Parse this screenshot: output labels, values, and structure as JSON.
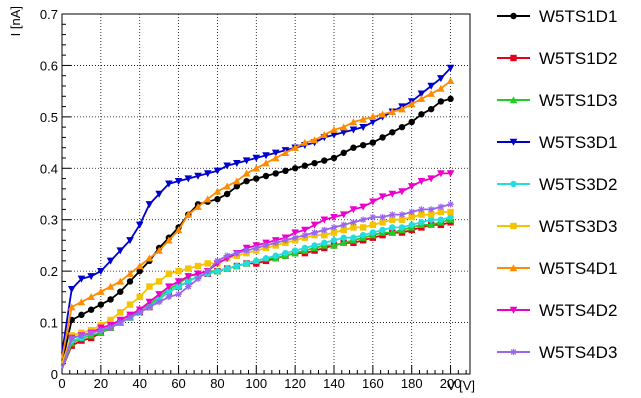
{
  "chart_data": {
    "type": "line",
    "xlabel": "V [V]",
    "ylabel": "I [nA]",
    "xlim": [
      0,
      210
    ],
    "ylim": [
      0,
      0.7
    ],
    "x_ticks": [
      0,
      20,
      40,
      60,
      80,
      100,
      120,
      140,
      160,
      180,
      200
    ],
    "y_ticks": [
      0,
      0.1,
      0.2,
      0.3,
      0.4,
      0.5,
      0.6,
      0.7
    ],
    "grid": true,
    "legend_position": "right",
    "x": [
      0,
      5,
      10,
      15,
      20,
      25,
      30,
      35,
      40,
      45,
      50,
      55,
      60,
      65,
      70,
      75,
      80,
      85,
      90,
      95,
      100,
      105,
      110,
      115,
      120,
      125,
      130,
      135,
      140,
      145,
      150,
      155,
      160,
      165,
      170,
      175,
      180,
      185,
      190,
      195,
      200
    ],
    "series": [
      {
        "name": "W5TS1D1",
        "color": "#000000",
        "marker": "circle",
        "values": [
          0.02,
          0.105,
          0.115,
          0.125,
          0.135,
          0.145,
          0.16,
          0.18,
          0.2,
          0.22,
          0.245,
          0.265,
          0.285,
          0.31,
          0.33,
          0.335,
          0.34,
          0.35,
          0.365,
          0.375,
          0.38,
          0.385,
          0.39,
          0.395,
          0.4,
          0.405,
          0.41,
          0.415,
          0.42,
          0.43,
          0.44,
          0.445,
          0.45,
          0.46,
          0.47,
          0.48,
          0.49,
          0.505,
          0.515,
          0.53,
          0.535
        ]
      },
      {
        "name": "W5TS1D2",
        "color": "#e6001a",
        "marker": "square",
        "values": [
          0.01,
          0.055,
          0.065,
          0.07,
          0.08,
          0.09,
          0.1,
          0.11,
          0.12,
          0.13,
          0.145,
          0.16,
          0.17,
          0.18,
          0.19,
          0.195,
          0.2,
          0.205,
          0.21,
          0.215,
          0.215,
          0.22,
          0.225,
          0.23,
          0.235,
          0.235,
          0.24,
          0.245,
          0.25,
          0.255,
          0.255,
          0.26,
          0.265,
          0.27,
          0.275,
          0.275,
          0.28,
          0.285,
          0.29,
          0.29,
          0.295
        ]
      },
      {
        "name": "W5TS1D3",
        "color": "#22cc22",
        "marker": "triangle-up",
        "values": [
          0.01,
          0.06,
          0.07,
          0.075,
          0.08,
          0.09,
          0.1,
          0.11,
          0.125,
          0.135,
          0.15,
          0.165,
          0.175,
          0.19,
          0.195,
          0.2,
          0.2,
          0.205,
          0.21,
          0.215,
          0.22,
          0.225,
          0.225,
          0.23,
          0.235,
          0.24,
          0.245,
          0.25,
          0.25,
          0.255,
          0.26,
          0.265,
          0.27,
          0.275,
          0.275,
          0.28,
          0.285,
          0.29,
          0.29,
          0.295,
          0.3
        ]
      },
      {
        "name": "W5TS3D1",
        "color": "#0000cc",
        "marker": "triangle-down",
        "values": [
          0.04,
          0.165,
          0.185,
          0.19,
          0.2,
          0.22,
          0.24,
          0.26,
          0.29,
          0.33,
          0.35,
          0.37,
          0.375,
          0.38,
          0.385,
          0.39,
          0.395,
          0.405,
          0.41,
          0.415,
          0.42,
          0.425,
          0.43,
          0.435,
          0.44,
          0.445,
          0.45,
          0.46,
          0.465,
          0.47,
          0.475,
          0.48,
          0.49,
          0.5,
          0.51,
          0.52,
          0.53,
          0.545,
          0.56,
          0.575,
          0.595
        ]
      },
      {
        "name": "W5TS3D2",
        "color": "#22dddd",
        "marker": "circle",
        "values": [
          0.01,
          0.065,
          0.07,
          0.08,
          0.085,
          0.095,
          0.1,
          0.11,
          0.12,
          0.13,
          0.145,
          0.16,
          0.17,
          0.18,
          0.19,
          0.195,
          0.2,
          0.205,
          0.21,
          0.215,
          0.22,
          0.225,
          0.23,
          0.235,
          0.24,
          0.245,
          0.25,
          0.255,
          0.26,
          0.265,
          0.265,
          0.27,
          0.275,
          0.28,
          0.285,
          0.285,
          0.29,
          0.295,
          0.3,
          0.3,
          0.305
        ]
      },
      {
        "name": "W5TS3D3",
        "color": "#f5c400",
        "marker": "square",
        "values": [
          0.02,
          0.075,
          0.08,
          0.085,
          0.095,
          0.105,
          0.12,
          0.135,
          0.15,
          0.17,
          0.18,
          0.195,
          0.2,
          0.205,
          0.21,
          0.215,
          0.215,
          0.225,
          0.23,
          0.235,
          0.24,
          0.245,
          0.25,
          0.255,
          0.26,
          0.265,
          0.27,
          0.27,
          0.275,
          0.28,
          0.285,
          0.285,
          0.29,
          0.295,
          0.3,
          0.3,
          0.305,
          0.31,
          0.31,
          0.315,
          0.315
        ]
      },
      {
        "name": "W5TS4D1",
        "color": "#ff8c00",
        "marker": "triangle-up",
        "values": [
          0.03,
          0.13,
          0.14,
          0.15,
          0.16,
          0.17,
          0.18,
          0.195,
          0.21,
          0.225,
          0.24,
          0.26,
          0.28,
          0.31,
          0.325,
          0.34,
          0.355,
          0.365,
          0.375,
          0.39,
          0.4,
          0.41,
          0.42,
          0.43,
          0.44,
          0.45,
          0.455,
          0.465,
          0.475,
          0.48,
          0.49,
          0.495,
          0.5,
          0.505,
          0.51,
          0.515,
          0.525,
          0.535,
          0.545,
          0.555,
          0.57
        ]
      },
      {
        "name": "W5TS4D2",
        "color": "#ee00cc",
        "marker": "triangle-down",
        "values": [
          0.01,
          0.07,
          0.075,
          0.08,
          0.09,
          0.095,
          0.105,
          0.115,
          0.125,
          0.14,
          0.155,
          0.17,
          0.18,
          0.19,
          0.195,
          0.2,
          0.215,
          0.225,
          0.235,
          0.245,
          0.25,
          0.255,
          0.26,
          0.265,
          0.275,
          0.28,
          0.29,
          0.3,
          0.305,
          0.31,
          0.32,
          0.325,
          0.335,
          0.345,
          0.35,
          0.355,
          0.365,
          0.375,
          0.38,
          0.39,
          0.39
        ]
      },
      {
        "name": "W5TS4D3",
        "color": "#9966ee",
        "marker": "star",
        "values": [
          0.01,
          0.07,
          0.075,
          0.08,
          0.085,
          0.09,
          0.1,
          0.11,
          0.12,
          0.13,
          0.14,
          0.15,
          0.155,
          0.17,
          0.185,
          0.2,
          0.22,
          0.23,
          0.235,
          0.24,
          0.245,
          0.25,
          0.255,
          0.26,
          0.265,
          0.27,
          0.275,
          0.28,
          0.285,
          0.29,
          0.295,
          0.3,
          0.305,
          0.305,
          0.31,
          0.31,
          0.315,
          0.32,
          0.32,
          0.325,
          0.33
        ]
      }
    ]
  }
}
